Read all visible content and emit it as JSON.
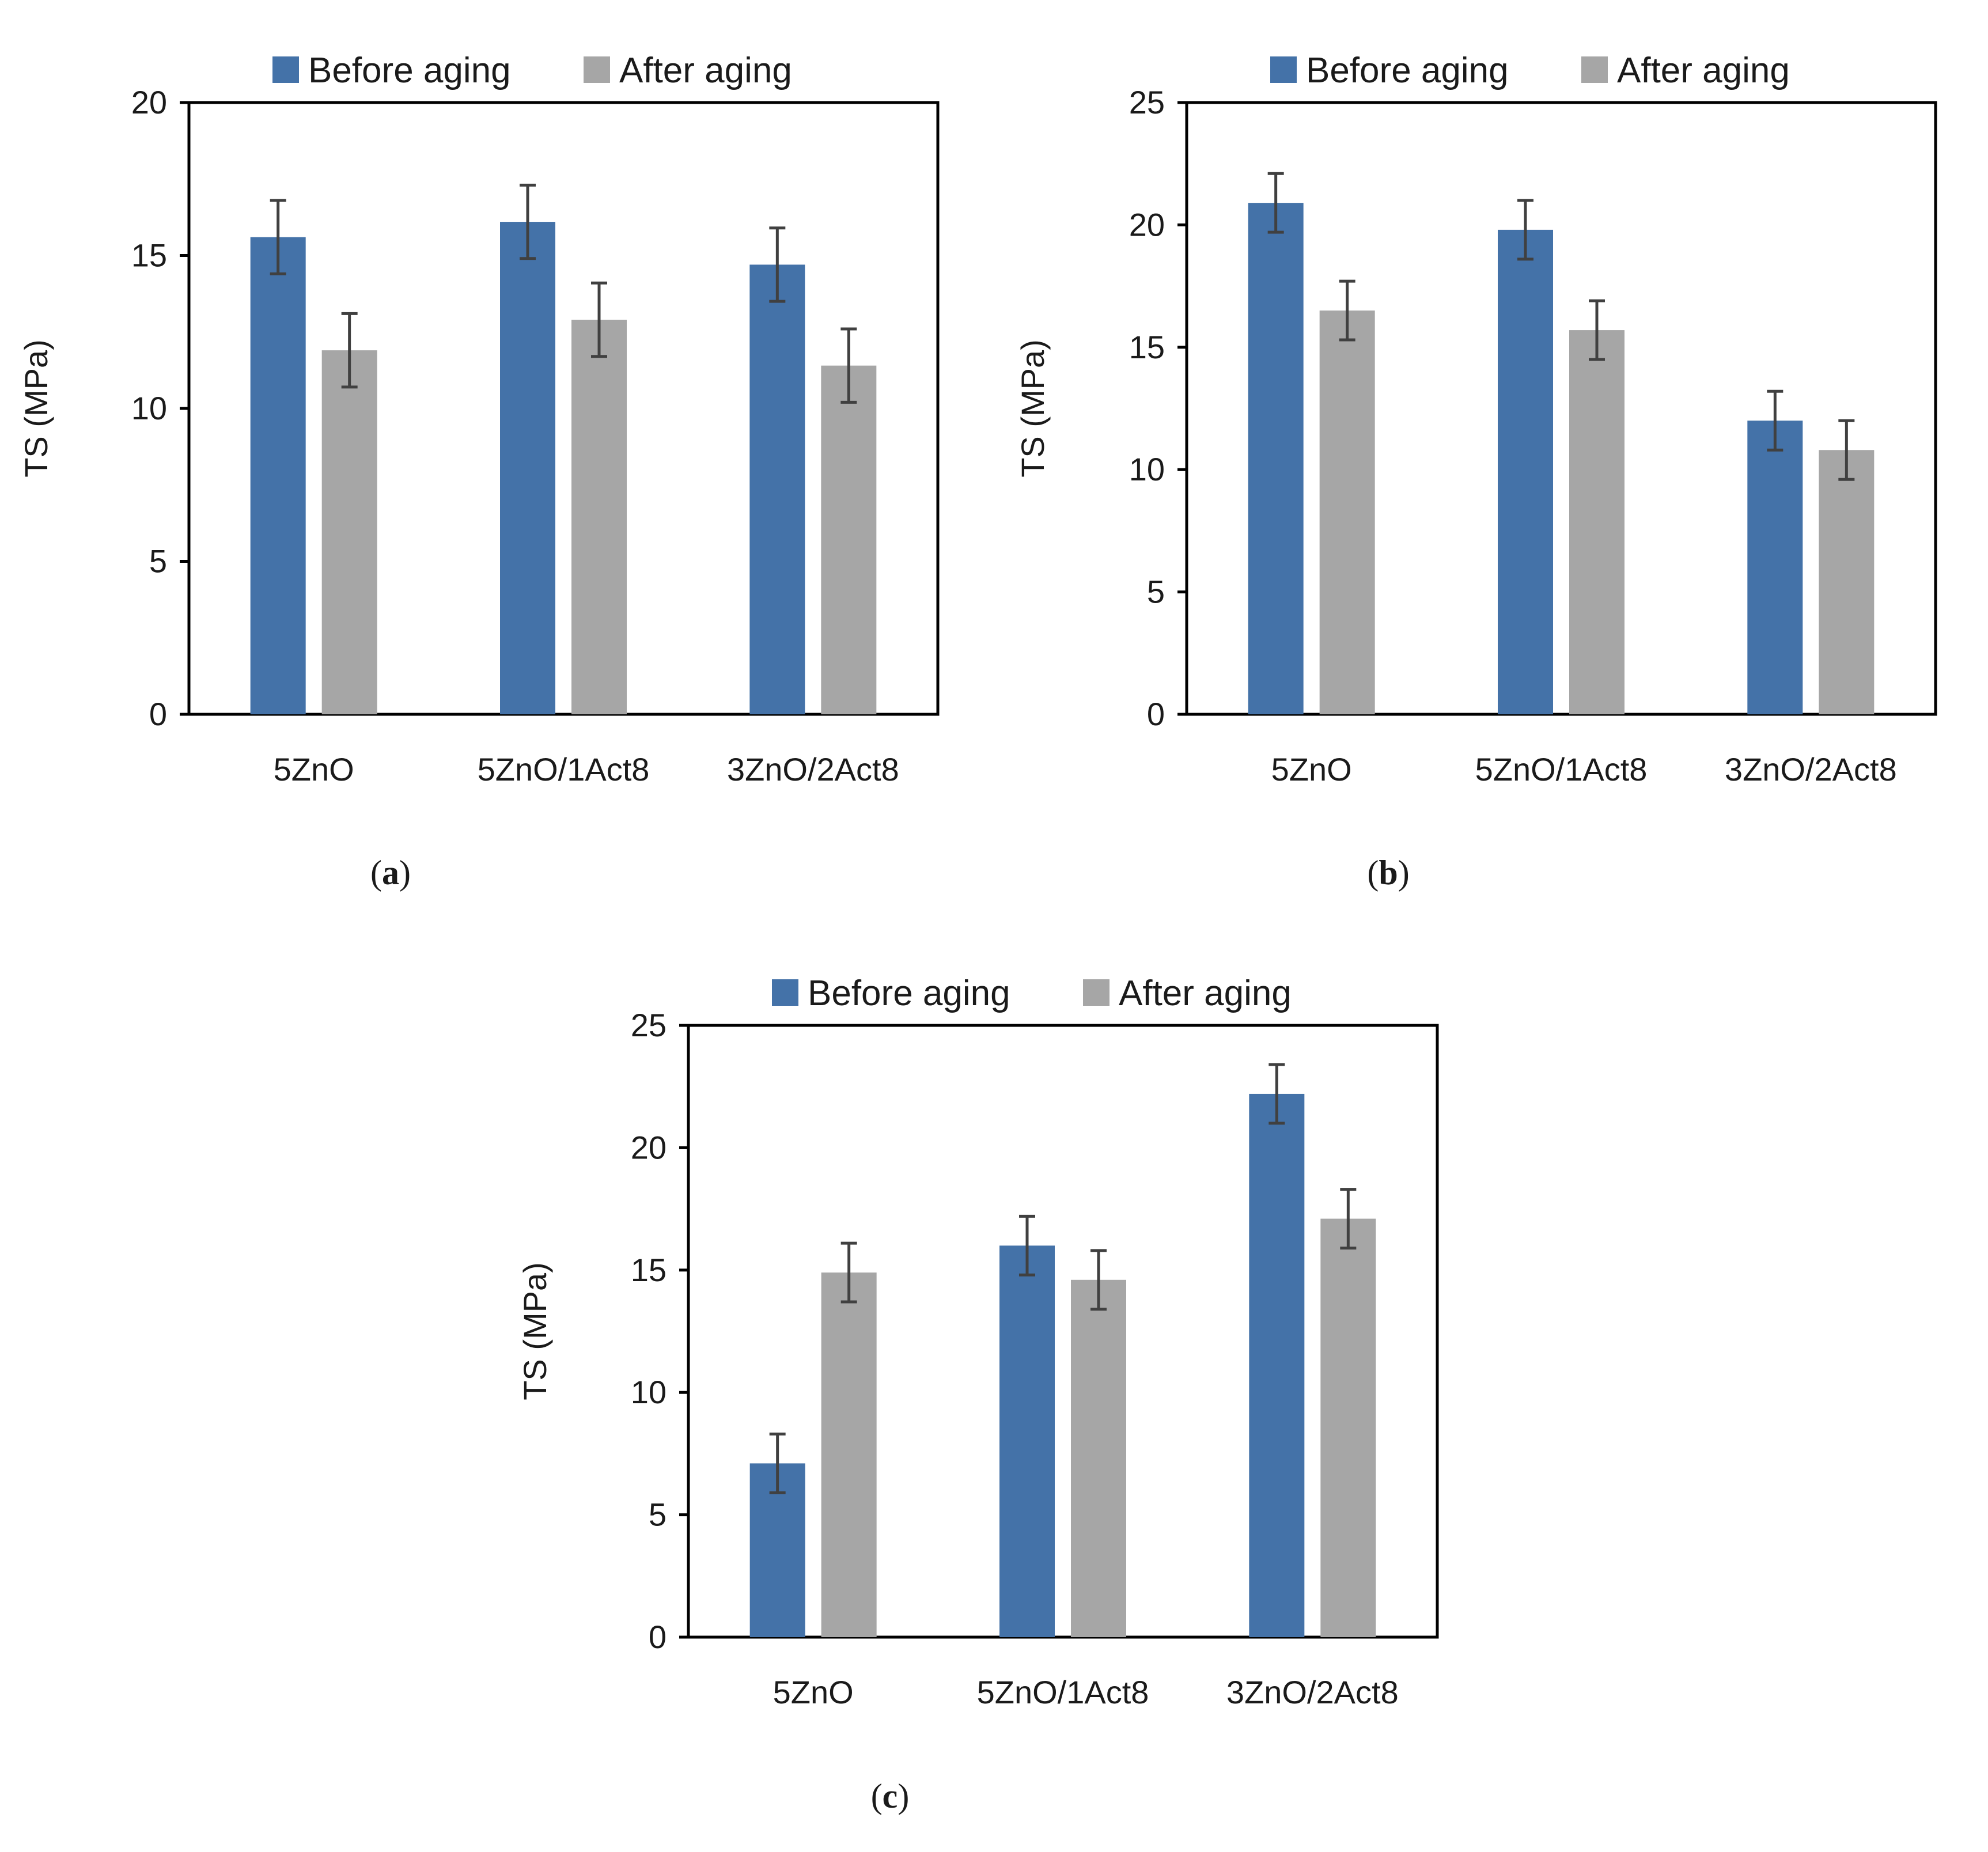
{
  "colors": {
    "before": "#4472A8",
    "after": "#A6A6A6",
    "axis": "#000000",
    "error": "#404040"
  },
  "chart_data": [
    {
      "id": "a",
      "type": "bar",
      "panel_label": "a",
      "categories": [
        "5ZnO",
        "5ZnO/1Act8",
        "3ZnO/2Act8"
      ],
      "series": [
        {
          "name": "Before aging",
          "values": [
            15.6,
            16.1,
            14.7
          ],
          "errors": [
            1.2,
            1.2,
            1.2
          ]
        },
        {
          "name": "After aging",
          "values": [
            11.9,
            12.9,
            11.4
          ],
          "errors": [
            1.2,
            1.2,
            1.2
          ]
        }
      ],
      "ylabel": "TS (MPa)",
      "ylim": [
        0,
        20
      ],
      "yticks": [
        0,
        5,
        10,
        15,
        20
      ],
      "grid": false,
      "legend": "top"
    },
    {
      "id": "b",
      "type": "bar",
      "panel_label": "b",
      "categories": [
        "5ZnO",
        "5ZnO/1Act8",
        "3ZnO/2Act8"
      ],
      "series": [
        {
          "name": "Before aging",
          "values": [
            20.9,
            19.8,
            12.0
          ],
          "errors": [
            1.2,
            1.2,
            1.2
          ]
        },
        {
          "name": "After aging",
          "values": [
            16.5,
            15.7,
            10.8
          ],
          "errors": [
            1.2,
            1.2,
            1.2
          ]
        }
      ],
      "ylabel": "TS (MPa)",
      "ylim": [
        0,
        25
      ],
      "yticks": [
        0,
        5,
        10,
        15,
        20,
        25
      ],
      "grid": false,
      "legend": "top"
    },
    {
      "id": "c",
      "type": "bar",
      "panel_label": "c",
      "categories": [
        "5ZnO",
        "5ZnO/1Act8",
        "3ZnO/2Act8"
      ],
      "series": [
        {
          "name": "Before aging",
          "values": [
            7.1,
            16.0,
            22.2
          ],
          "errors": [
            1.2,
            1.2,
            1.2
          ]
        },
        {
          "name": "After aging",
          "values": [
            14.9,
            14.6,
            17.1
          ],
          "errors": [
            1.2,
            1.2,
            1.2
          ]
        }
      ],
      "ylabel": "TS (MPa)",
      "ylim": [
        0,
        25
      ],
      "yticks": [
        0,
        5,
        10,
        15,
        20,
        25
      ],
      "grid": false,
      "legend": "top"
    }
  ]
}
